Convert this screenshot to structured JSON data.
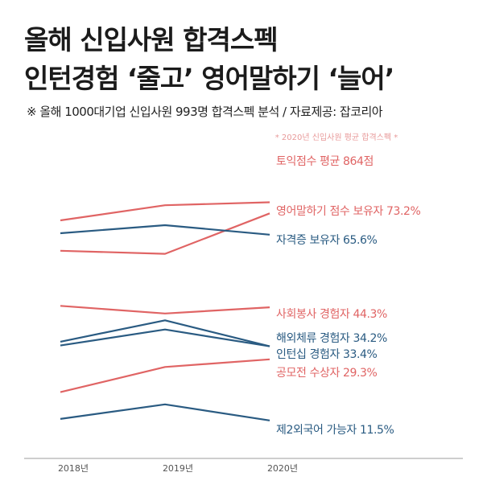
{
  "header": {
    "title_line1": "올해 신입사원 합격스펙",
    "title_line2": "인턴경험 ‘줄고’ 영어말하기 ‘늘어’",
    "subtitle": "※ 올해 1000대기업 신입사원 993명 합격스펙 분석 / 자료제공: 잡코리아"
  },
  "chart_data": {
    "type": "line",
    "annotation": "* 2020년 신입사원 평균 합격스펙 *",
    "x": [
      "2018년",
      "2019년",
      "2020년"
    ],
    "grid": false,
    "colors": {
      "red": "#e06464",
      "blue": "#2a5b82"
    },
    "series": [
      {
        "name": "토익점수",
        "label": "토익점수  평균 864점",
        "color": "#e06464",
        "values": [
          1.68,
          3.66,
          4.05
        ]
      },
      {
        "name": "영어말하기 점수 보유자",
        "label": "영어말하기 점수 보유자  73.2%",
        "color": "#e06464",
        "values": [
          -2.29,
          -2.69,
          2.6
        ]
      },
      {
        "name": "자격증 보유자",
        "label": "자격증 보유자  65.6%",
        "color": "#2a5b82",
        "values": [
          0.0,
          1.05,
          -0.19
        ]
      },
      {
        "name": "사회봉사 경험자",
        "label": "사회봉사 경험자  44.3%",
        "color": "#e06464",
        "values": [
          -9.5,
          -10.5,
          -9.7
        ]
      },
      {
        "name": "해외체류 경험자",
        "label": "해외체류 경험자  34.2%",
        "color": "#2a5b82",
        "values": [
          -14.2,
          -11.4,
          -14.8
        ]
      },
      {
        "name": "인턴십 경험자",
        "label": "인턴십 경험자  33.4%",
        "color": "#2a5b82",
        "values": [
          -14.7,
          -12.6,
          -14.8
        ]
      },
      {
        "name": "공모전 수상자",
        "label": "공모전 수상자  29.3%",
        "color": "#e06464",
        "values": [
          -20.8,
          -17.5,
          -16.5
        ]
      },
      {
        "name": "제2외국어 가능자",
        "label": "제2외국어 가능자  11.5%",
        "color": "#2a5b82",
        "values": [
          -24.3,
          -22.4,
          -24.5
        ]
      }
    ]
  }
}
